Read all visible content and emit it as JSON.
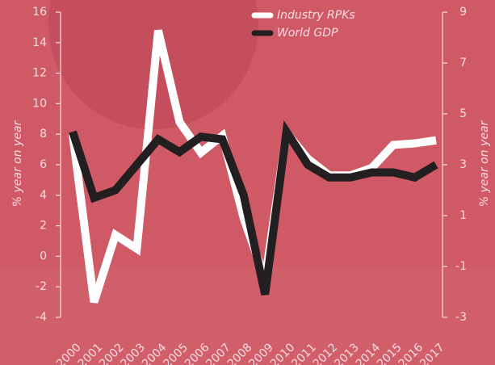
{
  "chart_data": {
    "type": "line",
    "categories": [
      "2000",
      "2001",
      "2002",
      "2003",
      "2004",
      "2005",
      "2006",
      "2007",
      "2008",
      "2009",
      "2010",
      "2011",
      "2012",
      "2013",
      "2014",
      "2015",
      "2016",
      "2017"
    ],
    "series": [
      {
        "name": "Industry RPKs",
        "color": "#ffffff",
        "values": [
          8,
          -3,
          1.4,
          0.5,
          14.8,
          8.8,
          6.8,
          7.9,
          2.5,
          -1.5,
          8.1,
          6.4,
          5.3,
          5.3,
          5.8,
          7.3,
          7.4,
          7.6
        ]
      },
      {
        "name": "World GDP",
        "color": "#231f20",
        "axis": "y2",
        "values": [
          4.3,
          1.7,
          2.0,
          3.0,
          4.0,
          3.5,
          4.1,
          4.0,
          1.8,
          -2.1,
          4.3,
          3.0,
          2.5,
          2.5,
          2.7,
          2.7,
          2.5,
          3.0
        ]
      }
    ],
    "ylabel": "% year on year",
    "y2label": "% year on year",
    "ylim": [
      -4,
      16
    ],
    "yticks": [
      -4,
      -2,
      0,
      2,
      4,
      6,
      8,
      10,
      12,
      14,
      16
    ],
    "y2lim": [
      -3,
      9
    ],
    "y2ticks": [
      -3,
      -1,
      1,
      3,
      5,
      7,
      9
    ],
    "legend": "upper center"
  }
}
